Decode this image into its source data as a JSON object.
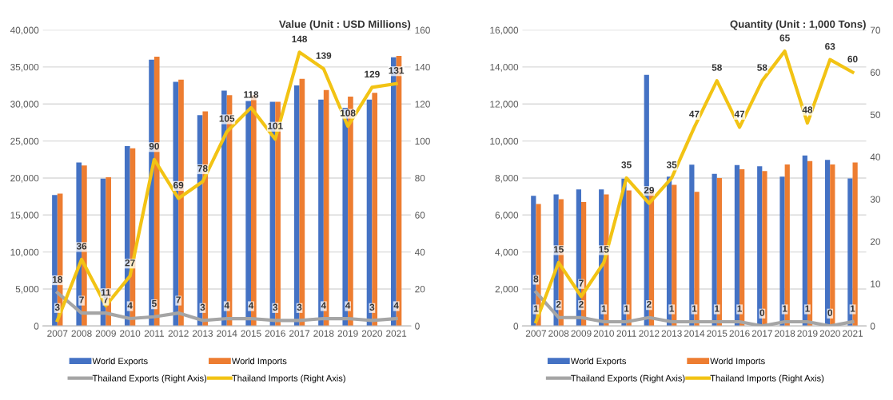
{
  "chart_data": [
    {
      "type": "bar",
      "title": "Value (Unit : USD Millions)",
      "categories": [
        "2007",
        "2008",
        "2009",
        "2010",
        "2011",
        "2012",
        "2013",
        "2014",
        "2015",
        "2016",
        "2017",
        "2018",
        "2019",
        "2020",
        "2021"
      ],
      "ylim": [
        0,
        40000
      ],
      "yticks": [
        {
          "value": 0,
          "label": "0"
        },
        {
          "value": 5000,
          "label": "5,000"
        },
        {
          "value": 10000,
          "label": "10,000"
        },
        {
          "value": 15000,
          "label": "15,000"
        },
        {
          "value": 20000,
          "label": "20,000"
        },
        {
          "value": 25000,
          "label": "25,000"
        },
        {
          "value": 30000,
          "label": "30,000"
        },
        {
          "value": 35000,
          "label": "35,000"
        },
        {
          "value": 40000,
          "label": "40,000"
        }
      ],
      "y2lim": [
        0,
        160
      ],
      "y2ticks": [
        0,
        20,
        40,
        60,
        80,
        100,
        120,
        140,
        160
      ],
      "grid": "y",
      "legend": "bottom",
      "series": [
        {
          "name": "World Exports",
          "color": "#4472c4",
          "values": [
            17700,
            22100,
            19900,
            24300,
            36000,
            33000,
            28500,
            31800,
            30400,
            30300,
            32500,
            30600,
            29500,
            30600,
            36300
          ]
        },
        {
          "name": "World Imports",
          "color": "#ed7d31",
          "values": [
            17900,
            21700,
            20100,
            24000,
            36400,
            33300,
            29000,
            31200,
            31200,
            30300,
            33400,
            31900,
            31000,
            31500,
            36500
          ]
        },
        {
          "name": "Thailand Exports (Right Axis)",
          "type": "line",
          "axis": "y2",
          "color": "#a5a5a5",
          "values": [
            18,
            7,
            7,
            4,
            5,
            7,
            3,
            4,
            4,
            3,
            3,
            4,
            4,
            3,
            4
          ],
          "value_labels": [
            "18",
            "7",
            "7",
            "4",
            "5",
            "7",
            "3",
            "4",
            "4",
            "3",
            "3",
            "4",
            "4",
            "3",
            "4"
          ]
        },
        {
          "name": "Thailand Imports (Right Axis)",
          "type": "line",
          "axis": "y2",
          "color": "#f2c314",
          "values": [
            3,
            36,
            11,
            27,
            90,
            69,
            78,
            105,
            118,
            101,
            148,
            139,
            108,
            129,
            131
          ],
          "value_labels": [
            "3",
            "36",
            "11",
            "27",
            "90",
            "69",
            "78",
            "105",
            "118",
            "101",
            "148",
            "139",
            "108",
            "129",
            "131"
          ]
        }
      ]
    },
    {
      "type": "bar",
      "title": "Quantity (Unit : 1,000 Tons)",
      "categories": [
        "2007",
        "2008",
        "2009",
        "2010",
        "2011",
        "2012",
        "2013",
        "2014",
        "2015",
        "2016",
        "2017",
        "2018",
        "2019",
        "2020",
        "2021"
      ],
      "ylim": [
        0,
        16000
      ],
      "yticks": [
        {
          "value": 0,
          "label": "0"
        },
        {
          "value": 2000,
          "label": "2,000"
        },
        {
          "value": 4000,
          "label": "4,000"
        },
        {
          "value": 6000,
          "label": "6,000"
        },
        {
          "value": 8000,
          "label": "8,000"
        },
        {
          "value": 10000,
          "label": "10,000"
        },
        {
          "value": 12000,
          "label": "12,000"
        },
        {
          "value": 14000,
          "label": "14,000"
        },
        {
          "value": 16000,
          "label": "16,000"
        }
      ],
      "y2lim": [
        0,
        70
      ],
      "y2ticks": [
        0,
        10,
        20,
        30,
        40,
        50,
        60,
        70
      ],
      "grid": "y",
      "legend": "bottom",
      "series": [
        {
          "name": "World Exports",
          "color": "#4472c4",
          "values": [
            7040,
            7110,
            7380,
            7380,
            7970,
            13580,
            8070,
            8720,
            8220,
            8700,
            8630,
            8070,
            9220,
            8980,
            7980
          ]
        },
        {
          "name": "World Imports",
          "color": "#ed7d31",
          "values": [
            6600,
            6850,
            6700,
            7110,
            7330,
            7320,
            7630,
            7250,
            8000,
            8470,
            8380,
            8730,
            8920,
            8730,
            8840
          ]
        },
        {
          "name": "Thailand Exports (Right Axis)",
          "type": "line",
          "axis": "y2",
          "color": "#a5a5a5",
          "values": [
            8,
            2,
            2,
            1,
            1,
            2,
            1,
            1,
            1,
            1,
            0,
            1,
            1,
            0,
            1
          ],
          "value_labels": [
            "8",
            "2",
            "2",
            "1",
            "1",
            "2",
            "1",
            "1",
            "1",
            "1",
            "0",
            "1",
            "1",
            "0",
            "1"
          ]
        },
        {
          "name": "Thailand Imports (Right Axis)",
          "type": "line",
          "axis": "y2",
          "color": "#f2c314",
          "values": [
            1,
            15,
            7,
            15,
            35,
            29,
            35,
            47,
            58,
            47,
            58,
            65,
            48,
            63,
            60
          ],
          "value_labels": [
            "1",
            "15",
            "7",
            "15",
            "35",
            "29",
            "35",
            "47",
            "58",
            "47",
            "58",
            "65",
            "48",
            "63",
            "60"
          ]
        }
      ]
    }
  ]
}
